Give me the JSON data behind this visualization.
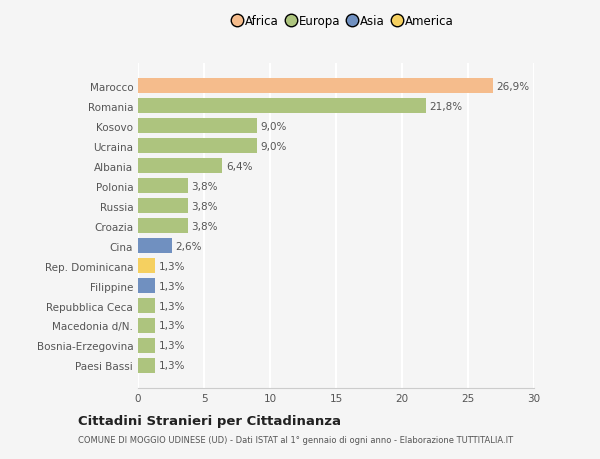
{
  "countries": [
    "Marocco",
    "Romania",
    "Kosovo",
    "Ucraina",
    "Albania",
    "Polonia",
    "Russia",
    "Croazia",
    "Cina",
    "Rep. Dominicana",
    "Filippine",
    "Repubblica Ceca",
    "Macedonia d/N.",
    "Bosnia-Erzegovina",
    "Paesi Bassi"
  ],
  "values": [
    26.9,
    21.8,
    9.0,
    9.0,
    6.4,
    3.8,
    3.8,
    3.8,
    2.6,
    1.3,
    1.3,
    1.3,
    1.3,
    1.3,
    1.3
  ],
  "labels": [
    "26,9%",
    "21,8%",
    "9,0%",
    "9,0%",
    "6,4%",
    "3,8%",
    "3,8%",
    "3,8%",
    "2,6%",
    "1,3%",
    "1,3%",
    "1,3%",
    "1,3%",
    "1,3%",
    "1,3%"
  ],
  "colors": [
    "#f5bc8c",
    "#adc47e",
    "#adc47e",
    "#adc47e",
    "#adc47e",
    "#adc47e",
    "#adc47e",
    "#adc47e",
    "#7090c0",
    "#f5d060",
    "#7090c0",
    "#adc47e",
    "#adc47e",
    "#adc47e",
    "#adc47e"
  ],
  "continent_colors": {
    "Africa": "#f5bc8c",
    "Europa": "#adc47e",
    "Asia": "#7090c0",
    "America": "#f5d060"
  },
  "legend_labels": [
    "Africa",
    "Europa",
    "Asia",
    "America"
  ],
  "title": "Cittadini Stranieri per Cittadinanza",
  "subtitle": "COMUNE DI MOGGIO UDINESE (UD) - Dati ISTAT al 1° gennaio di ogni anno - Elaborazione TUTTITALIA.IT",
  "xlim": [
    0,
    30
  ],
  "xticks": [
    0,
    5,
    10,
    15,
    20,
    25,
    30
  ],
  "background_color": "#f5f5f5",
  "bar_height": 0.75,
  "grid_color": "#ffffff",
  "label_fontsize": 7.5,
  "tick_fontsize": 7.5,
  "legend_fontsize": 8.5,
  "title_fontsize": 9.5,
  "subtitle_fontsize": 6.0
}
